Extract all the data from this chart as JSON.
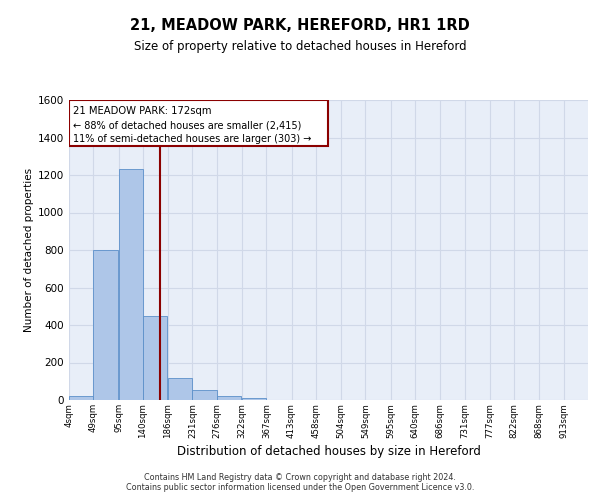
{
  "title": "21, MEADOW PARK, HEREFORD, HR1 1RD",
  "subtitle": "Size of property relative to detached houses in Hereford",
  "xlabel": "Distribution of detached houses by size in Hereford",
  "ylabel": "Number of detached properties",
  "footer_line1": "Contains HM Land Registry data © Crown copyright and database right 2024.",
  "footer_line2": "Contains public sector information licensed under the Open Government Licence v3.0.",
  "annotation_line1": "21 MEADOW PARK: 172sqm",
  "annotation_line2": "← 88% of detached houses are smaller (2,415)",
  "annotation_line3": "11% of semi-detached houses are larger (303) →",
  "property_size": 172,
  "bar_categories": [
    "4sqm",
    "49sqm",
    "95sqm",
    "140sqm",
    "186sqm",
    "231sqm",
    "276sqm",
    "322sqm",
    "367sqm",
    "413sqm",
    "458sqm",
    "504sqm",
    "549sqm",
    "595sqm",
    "640sqm",
    "686sqm",
    "731sqm",
    "777sqm",
    "822sqm",
    "868sqm",
    "913sqm"
  ],
  "bar_edges": [
    4,
    49,
    95,
    140,
    186,
    231,
    276,
    322,
    367,
    413,
    458,
    504,
    549,
    595,
    640,
    686,
    731,
    777,
    822,
    868,
    913
  ],
  "bar_values": [
    20,
    800,
    1230,
    450,
    120,
    55,
    20,
    10,
    0,
    0,
    0,
    0,
    0,
    0,
    0,
    0,
    0,
    0,
    0,
    0
  ],
  "bar_color": "#aec6e8",
  "bar_edge_color": "#5b8fc9",
  "vline_x": 172,
  "vline_color": "#8b0000",
  "annotation_box_color": "#8b0000",
  "grid_color": "#d0d8e8",
  "background_color": "#e8eef8",
  "ylim": [
    0,
    1600
  ],
  "yticks": [
    0,
    200,
    400,
    600,
    800,
    1000,
    1200,
    1400,
    1600
  ]
}
